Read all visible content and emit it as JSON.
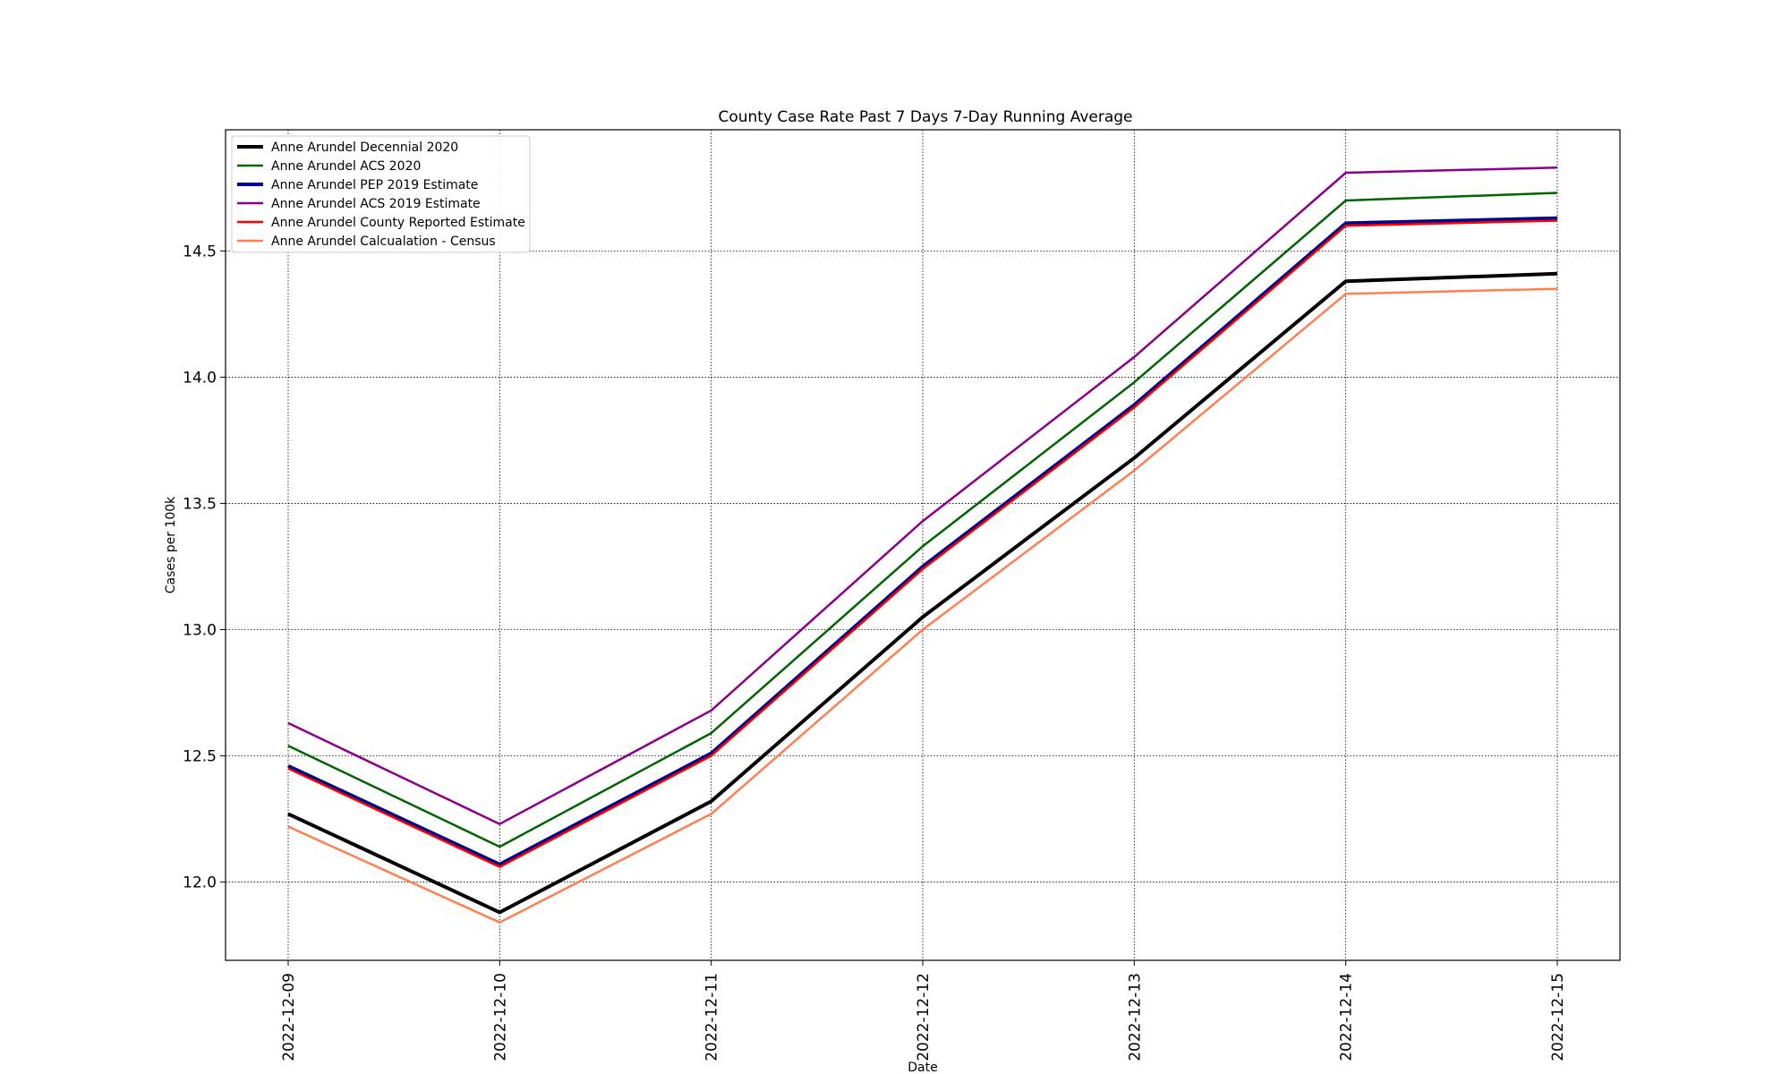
{
  "chart_data": {
    "type": "line",
    "title": "County Case Rate  Past 7 Days 7-Day Running Average",
    "xlabel": "Date",
    "ylabel": "Cases per 100k",
    "x": [
      "2022-12-09",
      "2022-12-10",
      "2022-12-11",
      "2022-12-12",
      "2022-12-13",
      "2022-12-14",
      "2022-12-15"
    ],
    "ylim": [
      11.69,
      14.98
    ],
    "yticks": [
      "12.0",
      "12.5",
      "13.0",
      "13.5",
      "14.0",
      "14.5"
    ],
    "ytick_values": [
      12.0,
      12.5,
      13.0,
      13.5,
      14.0,
      14.5
    ],
    "grid": true,
    "legend_position": "upper left",
    "series": [
      {
        "name": "Anne Arundel Decennial 2020",
        "color": "#000000",
        "values": [
          12.27,
          11.88,
          12.32,
          13.05,
          13.68,
          14.38,
          14.41
        ]
      },
      {
        "name": "Anne Arundel ACS 2020",
        "color": "#006400",
        "values": [
          12.54,
          12.14,
          12.59,
          13.33,
          13.98,
          14.7,
          14.73
        ]
      },
      {
        "name": "Anne Arundel PEP 2019 Estimate",
        "color": "#00008b",
        "values": [
          12.46,
          12.07,
          12.51,
          13.25,
          13.89,
          14.61,
          14.63
        ]
      },
      {
        "name": "Anne Arundel ACS 2019 Estimate",
        "color": "#8b008b",
        "values": [
          12.63,
          12.23,
          12.68,
          13.43,
          14.08,
          14.81,
          14.83
        ]
      },
      {
        "name": "Anne Arundel County Reported Estimate",
        "color": "#ff0000",
        "values": [
          12.45,
          12.06,
          12.5,
          13.24,
          13.88,
          14.6,
          14.62
        ]
      },
      {
        "name": "Anne Arundel Calcualation - Census",
        "color": "#ff7f50",
        "values": [
          12.22,
          11.84,
          12.27,
          13.0,
          13.63,
          14.33,
          14.35
        ]
      }
    ]
  }
}
